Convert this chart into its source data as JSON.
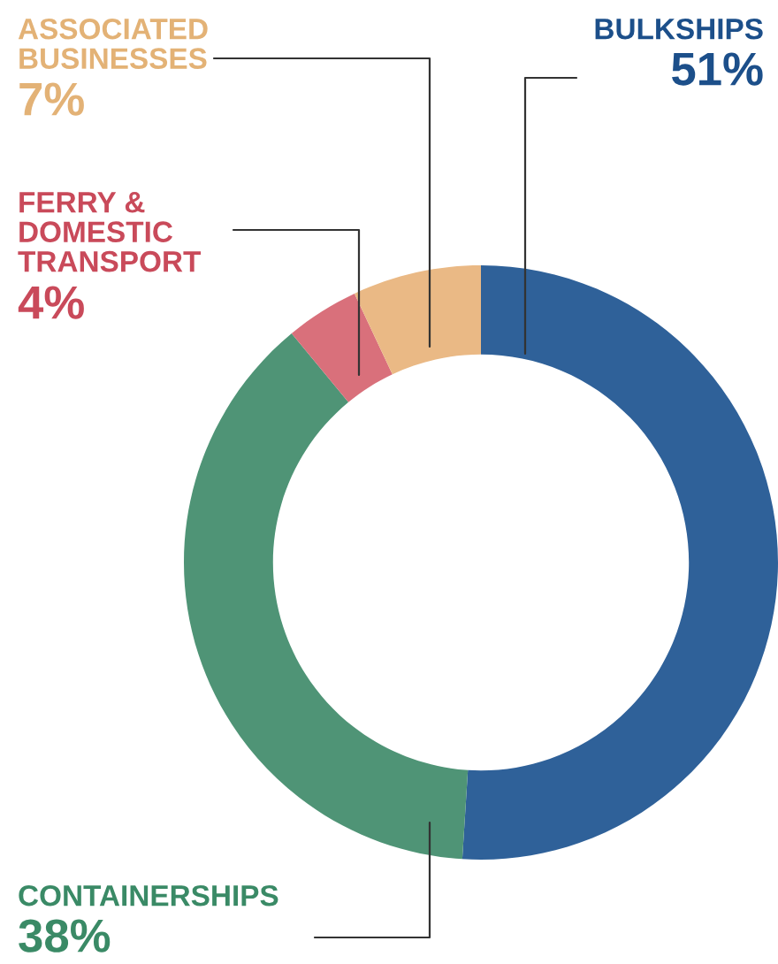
{
  "chart_data": {
    "type": "donut",
    "categories": [
      "BULKSHIPS",
      "CONTAINERSHIPS",
      "FERRY &\nDOMESTIC\nTRANSPORT",
      "ASSOCIATED\nBUSINESSES"
    ],
    "values": [
      51,
      38,
      4,
      7
    ],
    "value_labels": [
      "51%",
      "38%",
      "4%",
      "7%"
    ],
    "colors": [
      "#2f6199",
      "#4f9476",
      "#d9707b",
      "#eab985"
    ],
    "data_labels": true
  }
}
